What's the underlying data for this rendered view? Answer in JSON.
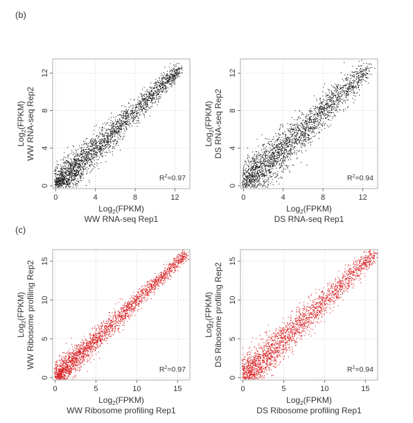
{
  "panels": {
    "b": "(b)",
    "c": "(c)"
  },
  "chart_data": [
    {
      "type": "scatter",
      "title": "",
      "xlabel_prefix": "Log",
      "xlabel_sub": "2",
      "xlabel_suffix": "(FPKM)",
      "xlabel_sample": "WW RNA-seq Rep1",
      "ylabel_prefix": "Log",
      "ylabel_sub": "2",
      "ylabel_suffix": "(FPKM)",
      "ylabel_sample": "WW RNA-seq Rep2",
      "xlim": [
        -0.3,
        13.5
      ],
      "ylim": [
        -0.3,
        13.5
      ],
      "xticks": [
        "0",
        "4",
        "8",
        "12"
      ],
      "xtick_values": [
        0,
        4,
        8,
        12
      ],
      "yticks": [
        "0",
        "4",
        "8",
        "12"
      ],
      "ytick_values": [
        0,
        4,
        8,
        12
      ],
      "grid": true,
      "r2_prefix": "R",
      "r2_sup": "2",
      "r2_value": "=0.97",
      "color": "#111111",
      "trend": {
        "slope": 1.0,
        "intercept": 0.0,
        "x_range": [
          0,
          12.5
        ],
        "spread": 0.55
      }
    },
    {
      "type": "scatter",
      "title": "",
      "xlabel_prefix": "Log",
      "xlabel_sub": "2",
      "xlabel_suffix": "(FPKM)",
      "xlabel_sample": "DS RNA-seq Rep1",
      "ylabel_prefix": "Log",
      "ylabel_sub": "2",
      "ylabel_suffix": "(FPKM)",
      "ylabel_sample": "DS RNA-seq Rep2",
      "xlim": [
        -0.3,
        13.5
      ],
      "ylim": [
        -0.3,
        13.5
      ],
      "xticks": [
        "0",
        "4",
        "8",
        "12"
      ],
      "xtick_values": [
        0,
        4,
        8,
        12
      ],
      "yticks": [
        "0",
        "4",
        "8",
        "12"
      ],
      "ytick_values": [
        0,
        4,
        8,
        12
      ],
      "grid": true,
      "r2_prefix": "R",
      "r2_sup": "2",
      "r2_value": "=0.94",
      "color": "#111111",
      "trend": {
        "slope": 1.0,
        "intercept": 0.0,
        "x_range": [
          0,
          12.5
        ],
        "spread": 0.75
      }
    },
    {
      "type": "scatter",
      "title": "",
      "xlabel_prefix": "Log",
      "xlabel_sub": "2",
      "xlabel_suffix": "(FPKM)",
      "xlabel_sample": "WW Ribosome profiling Rep1",
      "ylabel_prefix": "Log",
      "ylabel_sub": "2",
      "ylabel_suffix": "(FPKM)",
      "ylabel_sample": "WW Ribosome profiling Rep2",
      "xlim": [
        -0.3,
        16.5
      ],
      "ylim": [
        -0.3,
        16.5
      ],
      "xticks": [
        "0",
        "5",
        "10",
        "15"
      ],
      "xtick_values": [
        0,
        5,
        10,
        15
      ],
      "yticks": [
        "0",
        "5",
        "10",
        "15"
      ],
      "ytick_values": [
        0,
        5,
        10,
        15
      ],
      "grid": true,
      "r2_prefix": "R",
      "r2_sup": "2",
      "r2_value": "=0.97",
      "color": "#d7191c",
      "trend": {
        "slope": 1.0,
        "intercept": 0.0,
        "x_range": [
          0,
          16
        ],
        "spread": 0.5
      }
    },
    {
      "type": "scatter",
      "title": "",
      "xlabel_prefix": "Log",
      "xlabel_sub": "2",
      "xlabel_suffix": "(FPKM)",
      "xlabel_sample": "DS Ribosome profiling Rep1",
      "ylabel_prefix": "Log",
      "ylabel_sub": "2",
      "ylabel_suffix": "(FPKM)",
      "ylabel_sample": "DS Ribosome profiling Rep2",
      "xlim": [
        -0.3,
        16.5
      ],
      "ylim": [
        -0.3,
        16.5
      ],
      "xticks": [
        "0",
        "5",
        "10",
        "15"
      ],
      "xtick_values": [
        0,
        5,
        10,
        15
      ],
      "yticks": [
        "0",
        "5",
        "10",
        "15"
      ],
      "ytick_values": [
        0,
        5,
        10,
        15
      ],
      "grid": true,
      "r2_prefix": "R",
      "r2_sup": "2",
      "r2_value": "=0.94",
      "color": "#d7191c",
      "trend": {
        "slope": 1.0,
        "intercept": 0.0,
        "x_range": [
          0,
          16
        ],
        "spread": 0.75
      }
    }
  ]
}
